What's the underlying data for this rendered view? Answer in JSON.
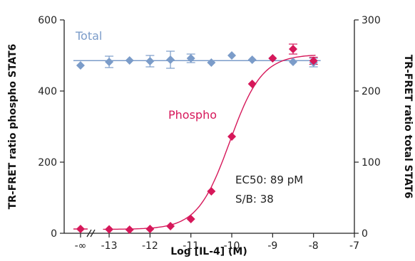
{
  "chart_data": {
    "type": "scatter",
    "xlabel": "Log [IL-4] (M)",
    "ylabel_left": "TR-FRET ratio phospho  STAT6",
    "ylabel_right": "TR-FRET ratio total STAT6",
    "x_tick_labels": [
      "-∞",
      "-13",
      "-12",
      "-11",
      "-10",
      "-9",
      "-8",
      "-7"
    ],
    "x_tick_values": [
      -13.7,
      -13,
      -12,
      -11,
      -10,
      -9,
      -8,
      -7
    ],
    "xlim": [
      -14.1,
      -7
    ],
    "y_left_ticks": [
      0,
      200,
      400,
      600
    ],
    "ylim_left": [
      0,
      600
    ],
    "y_right_ticks": [
      0,
      100,
      200,
      300
    ],
    "ylim_right": [
      0,
      300
    ],
    "series": [
      {
        "name": "Total",
        "axis": "right",
        "color": "#7b9cc9",
        "marker": "diamond",
        "fit_line": "horizontal",
        "x": [
          -13.7,
          -13,
          -12.5,
          -12,
          -11.5,
          -11,
          -10.5,
          -10,
          -9.5,
          -9,
          -8.5,
          -8
        ],
        "y": [
          236,
          241,
          243,
          242,
          244,
          246,
          240,
          250,
          244,
          246,
          241,
          240
        ],
        "err": [
          0,
          8,
          0,
          8,
          12,
          6,
          0,
          0,
          0,
          0,
          0,
          6
        ]
      },
      {
        "name": "Phospho",
        "axis": "left",
        "color": "#d6185a",
        "marker": "diamond",
        "fit_line": "sigmoid",
        "x": [
          -13.7,
          -13,
          -12.5,
          -12,
          -11.5,
          -11,
          -10.5,
          -10,
          -9.5,
          -9,
          -8.5,
          -8
        ],
        "y": [
          12,
          11,
          10,
          12,
          20,
          40,
          118,
          272,
          420,
          492,
          518,
          485
        ],
        "err": [
          0,
          0,
          0,
          0,
          0,
          0,
          0,
          0,
          0,
          0,
          14,
          10
        ]
      }
    ],
    "annotations": [
      "EC50: 89 pM",
      "S/B: 38"
    ],
    "grid": false,
    "legend": "inline labels"
  }
}
